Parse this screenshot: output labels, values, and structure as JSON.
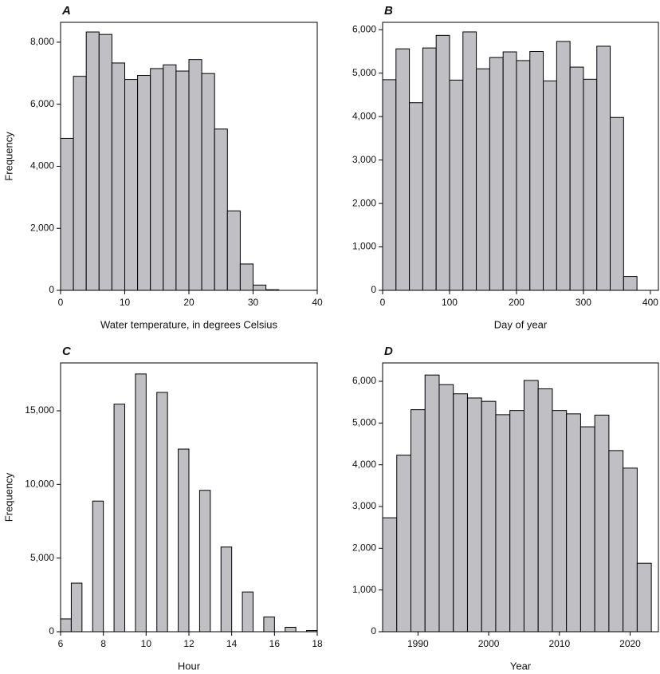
{
  "chart_data": [
    {
      "type": "histogram",
      "title": "A",
      "x_label": "Water temperature, in degrees Celsius",
      "y_label": "Frequency",
      "color": "#c0c0c4",
      "bins": [
        0,
        2,
        4,
        6,
        8,
        10,
        12,
        14,
        16,
        18,
        20,
        22,
        24,
        26,
        28,
        30,
        32,
        34
      ],
      "values": [
        4900,
        6900,
        8330,
        8250,
        7330,
        6800,
        6930,
        7150,
        7270,
        7070,
        7440,
        6990,
        5200,
        2560,
        850,
        170,
        20
      ],
      "xlim": [
        0,
        40
      ],
      "xticks": [
        0,
        10,
        20,
        30,
        40
      ],
      "ylim": [
        0,
        8640
      ],
      "yticks": [
        0,
        {
          "value": 2000,
          "label": "2,000"
        },
        {
          "value": 4000,
          "label": "4,000"
        },
        {
          "value": 6000,
          "label": "6,000"
        },
        {
          "value": 8000,
          "label": "8,000"
        }
      ]
    },
    {
      "type": "histogram",
      "title": "B",
      "x_label": "Day of year",
      "color": "#c0c0c4",
      "bins": [
        0,
        20,
        40,
        60,
        80,
        100,
        120,
        140,
        160,
        180,
        200,
        220,
        240,
        260,
        280,
        300,
        320,
        340,
        360,
        380
      ],
      "values": [
        4850,
        5560,
        4320,
        5580,
        5870,
        4840,
        5950,
        5100,
        5360,
        5490,
        5290,
        5500,
        4820,
        5730,
        5140,
        4860,
        5620,
        3980,
        320
      ],
      "xlim": [
        0,
        412
      ],
      "xticks": [
        0,
        100,
        200,
        300,
        400
      ],
      "ylim": [
        0,
        6170
      ],
      "yticks": [
        0,
        {
          "value": 1000,
          "label": "1,000"
        },
        {
          "value": 2000,
          "label": "2,000"
        },
        {
          "value": 3000,
          "label": "3,000"
        },
        {
          "value": 4000,
          "label": "4,000"
        },
        {
          "value": 5000,
          "label": "5,000"
        },
        {
          "value": 6000,
          "label": "6,000"
        }
      ]
    },
    {
      "type": "histogram",
      "title": "C",
      "x_label": "Hour",
      "y_label": "Frequency",
      "color": "#c0c0c4",
      "bins": [
        6,
        6.5,
        7,
        7.5,
        8,
        8.5,
        9,
        9.5,
        10,
        10.5,
        11,
        11.5,
        12,
        12.5,
        13,
        13.5,
        14,
        14.5,
        15,
        15.5,
        16,
        16.5,
        17,
        17.5,
        18
      ],
      "values": [
        870,
        3300,
        0,
        8870,
        0,
        15450,
        0,
        17500,
        0,
        16250,
        0,
        12400,
        0,
        9600,
        0,
        5750,
        0,
        2700,
        0,
        1000,
        0,
        300,
        0,
        80
      ],
      "xlim": [
        6,
        18
      ],
      "xticks": [
        6,
        8,
        10,
        12,
        14,
        16,
        18
      ],
      "ylim": [
        0,
        18250
      ],
      "yticks": [
        0,
        {
          "value": 5000,
          "label": "5,000"
        },
        {
          "value": 10000,
          "label": "10,000"
        },
        {
          "value": 15000,
          "label": "15,000"
        }
      ]
    },
    {
      "type": "histogram",
      "title": "D",
      "x_label": "Year",
      "color": "#c0c0c4",
      "bins": [
        1985,
        1987,
        1989,
        1991,
        1993,
        1995,
        1997,
        1999,
        2001,
        2003,
        2005,
        2007,
        2009,
        2011,
        2013,
        2015,
        2017,
        2019,
        2021,
        2023
      ],
      "values": [
        2730,
        4230,
        5320,
        6150,
        5920,
        5700,
        5600,
        5520,
        5200,
        5300,
        6020,
        5820,
        5300,
        5220,
        4910,
        5190,
        4340,
        3920,
        1640
      ],
      "xlim": [
        1985,
        2024
      ],
      "xticks": [
        1990,
        2000,
        2010,
        2020
      ],
      "ylim": [
        0,
        6440
      ],
      "yticks": [
        0,
        {
          "value": 1000,
          "label": "1,000"
        },
        {
          "value": 2000,
          "label": "2,000"
        },
        {
          "value": 3000,
          "label": "3,000"
        },
        {
          "value": 4000,
          "label": "4,000"
        },
        {
          "value": 5000,
          "label": "5,000"
        },
        {
          "value": 6000,
          "label": "6,000"
        }
      ]
    }
  ]
}
